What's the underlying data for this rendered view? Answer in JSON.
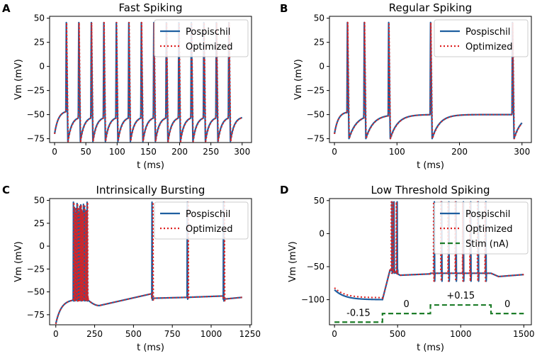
{
  "colors": {
    "pospischil": "#1f5fa0",
    "optimized": "#dd2222",
    "stim": "#1e7d2a",
    "axis": "#000000",
    "legend_border": "#cccccc"
  },
  "chart_data": [
    {
      "panel": "A",
      "type": "line",
      "title": "Fast Spiking",
      "xlabel": "t (ms)",
      "ylabel": "Vm (mV)",
      "xlim": [
        -8,
        315
      ],
      "ylim": [
        -79,
        52
      ],
      "xticks": [
        0,
        50,
        100,
        150,
        200,
        250,
        300
      ],
      "xtick_labels": [
        "0",
        "50",
        "100",
        "150",
        "200",
        "250",
        "300"
      ],
      "yticks": [
        50,
        25,
        0,
        -25,
        -50,
        -75
      ],
      "ytick_labels": [
        "50",
        "25",
        "0",
        "−25",
        "−50",
        "−75"
      ],
      "legend_position": "top-right",
      "sim": {
        "tEnd": 300,
        "spikes": [
          18,
          38,
          58,
          78,
          98,
          118,
          138,
          158,
          178,
          198,
          218,
          238,
          258,
          278
        ],
        "rest": -70,
        "peak": 48,
        "trough": -78,
        "thresh": -47,
        "recTau": 6,
        "plateau": -52,
        "dt": 0.25
      },
      "series": [
        {
          "name": "Pospischil",
          "style": "solid"
        },
        {
          "name": "Optimized",
          "style": "dotted"
        }
      ]
    },
    {
      "panel": "B",
      "type": "line",
      "title": "Regular Spiking",
      "xlabel": "t (ms)",
      "ylabel": "Vm (mV)",
      "xlim": [
        -8,
        315
      ],
      "ylim": [
        -79,
        52
      ],
      "xticks": [
        0,
        100,
        200,
        300
      ],
      "xtick_labels": [
        "0",
        "100",
        "200",
        "300"
      ],
      "yticks": [
        50,
        25,
        0,
        -25,
        -50,
        -75
      ],
      "ytick_labels": [
        "50",
        "25",
        "0",
        "−25",
        "−50",
        "−75"
      ],
      "legend_position": "top-right",
      "sim": {
        "tEnd": 300,
        "spikes": [
          20,
          47,
          86,
          153,
          284
        ],
        "rest": -70,
        "peak": 48,
        "trough": -75,
        "thresh": -48,
        "recTau": 12,
        "plateau": -50,
        "dt": 0.25
      },
      "series": [
        {
          "name": "Pospischil",
          "style": "solid"
        },
        {
          "name": "Optimized",
          "style": "dotted"
        }
      ]
    },
    {
      "panel": "C",
      "type": "line",
      "title": "Intrinsically Bursting",
      "xlabel": "t (ms)",
      "ylabel": "Vm (mV)",
      "xlim": [
        -40,
        1260
      ],
      "ylim": [
        -86,
        52
      ],
      "xticks": [
        0,
        250,
        500,
        750,
        1000,
        1250
      ],
      "xtick_labels": [
        "0",
        "250",
        "500",
        "750",
        "1000",
        "1250"
      ],
      "yticks": [
        50,
        25,
        0,
        -25,
        -50,
        -75
      ],
      "ytick_labels": [
        "50",
        "25",
        "0",
        "−25",
        "−50",
        "−75"
      ],
      "legend_position": "top-right",
      "sim": {
        "tEnd": 1200,
        "burstStart": 112,
        "burstEnd": 200,
        "burstCount": 16,
        "spikes": [
          618,
          845,
          1078
        ],
        "peak": 48,
        "dt": 1
      },
      "series": [
        {
          "name": "Pospischil",
          "style": "solid"
        },
        {
          "name": "Optimized",
          "style": "dotted"
        }
      ]
    },
    {
      "panel": "D",
      "type": "line",
      "title": "Low Threshold Spiking",
      "xlabel": "t (ms)",
      "ylabel": "Vm (mV)",
      "xlim": [
        -40,
        1560
      ],
      "ylim": [
        -138,
        53
      ],
      "xticks": [
        0,
        500,
        1000,
        1500
      ],
      "xtick_labels": [
        "0",
        "500",
        "1000",
        "1500"
      ],
      "yticks": [
        50,
        0,
        -50,
        -100
      ],
      "ytick_labels": [
        "50",
        "0",
        "−50",
        "−100"
      ],
      "legend_position": "top-right",
      "stim_steps": [
        {
          "t0": 0,
          "t1": 380,
          "value": -0.15,
          "label": "-0.15",
          "level": -134
        },
        {
          "t0": 380,
          "t1": 760,
          "value": 0,
          "label": "0",
          "level": -121
        },
        {
          "t0": 760,
          "t1": 1240,
          "value": 0.15,
          "label": "+0.15",
          "level": -108
        },
        {
          "t0": 1240,
          "t1": 1500,
          "value": 0,
          "label": "0",
          "level": -121
        }
      ],
      "sim": {
        "tEnd": 1500,
        "reboundSpikes": [
          455,
          470,
          495
        ],
        "spikes": [
          790,
          848,
          905,
          962,
          1020,
          1078,
          1138,
          1198
        ],
        "peak": 48,
        "dt": 1
      },
      "series": [
        {
          "name": "Pospischil",
          "style": "solid"
        },
        {
          "name": "Optimized",
          "style": "dotted"
        },
        {
          "name": "Stim (nA)",
          "style": "dashed"
        }
      ]
    }
  ]
}
